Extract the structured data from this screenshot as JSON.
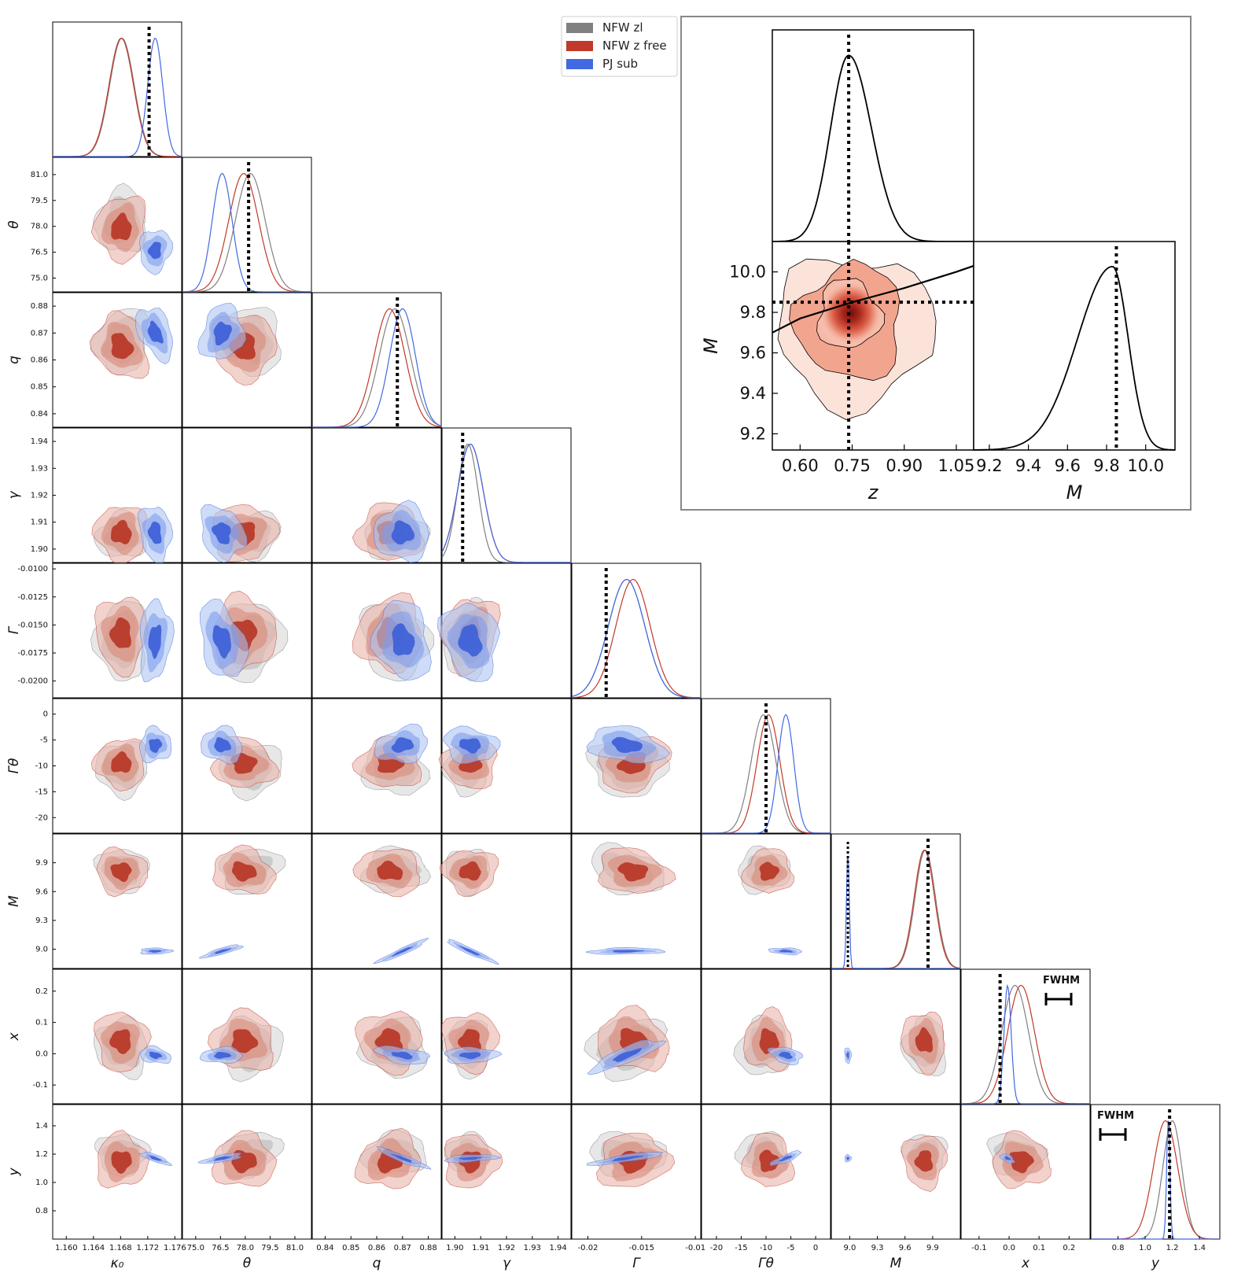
{
  "chart_data": {
    "type": "corner",
    "legend": {
      "placement": "top-center",
      "entries": [
        {
          "name": "NFW zl",
          "color": "#808080"
        },
        {
          "name": "NFW z free",
          "color": "#c0392b"
        },
        {
          "name": "PJ sub",
          "color": "#4169e1"
        }
      ]
    },
    "parameters": [
      {
        "key": "kappa0",
        "label": "κ₀",
        "range": [
          1.158,
          1.177
        ],
        "ticks": [
          "1.160",
          "1.164",
          "1.168",
          "1.172",
          "1.176"
        ],
        "tick_values": [
          1.16,
          1.164,
          1.168,
          1.172,
          1.176
        ],
        "truth": 1.1722,
        "hist": {
          "NFW zl": {
            "mean": 1.1682,
            "sd": 0.0018
          },
          "NFW z free": {
            "mean": 1.1681,
            "sd": 0.0018
          },
          "PJ sub": {
            "mean": 1.1731,
            "sd": 0.0011
          }
        }
      },
      {
        "key": "theta",
        "label": "θ",
        "range": [
          74.2,
          82.0
        ],
        "ticks": [
          "75.0",
          "76.5",
          "78.0",
          "79.5",
          "81.0"
        ],
        "tick_values": [
          75.0,
          76.5,
          78.0,
          79.5,
          81.0
        ],
        "truth": 78.2,
        "hist": {
          "NFW zl": {
            "mean": 78.3,
            "sd": 0.9
          },
          "NFW z free": {
            "mean": 77.9,
            "sd": 0.9
          },
          "PJ sub": {
            "mean": 76.6,
            "sd": 0.6
          }
        }
      },
      {
        "key": "q",
        "label": "q",
        "range": [
          0.835,
          0.885
        ],
        "ticks": [
          "0.84",
          "0.85",
          "0.86",
          "0.87",
          "0.88"
        ],
        "tick_values": [
          0.84,
          0.85,
          0.86,
          0.87,
          0.88
        ],
        "truth": 0.868,
        "hist": {
          "NFW zl": {
            "mean": 0.867,
            "sd": 0.006
          },
          "NFW z free": {
            "mean": 0.865,
            "sd": 0.006
          },
          "PJ sub": {
            "mean": 0.87,
            "sd": 0.005
          }
        }
      },
      {
        "key": "gamma",
        "label": "γ",
        "range": [
          1.895,
          1.945
        ],
        "ticks": [
          "1.90",
          "1.91",
          "1.92",
          "1.93",
          "1.94"
        ],
        "tick_values": [
          1.9,
          1.91,
          1.92,
          1.93,
          1.94
        ],
        "truth": 1.903,
        "hist": {
          "NFW zl": {
            "mean": 1.905,
            "sd": 0.004
          },
          "NFW z free": {
            "mean": 1.906,
            "sd": 0.005
          },
          "PJ sub": {
            "mean": 1.906,
            "sd": 0.005
          }
        }
      },
      {
        "key": "Gamma",
        "label": "Γ",
        "range": [
          -0.0215,
          -0.0095
        ],
        "ticks": [
          "-0.0100",
          "-0.0125",
          "-0.0150",
          "-0.0175",
          "-0.0200"
        ],
        "tick_values": [
          -0.01,
          -0.0125,
          -0.015,
          -0.0175,
          -0.02
        ],
        "bottom_ticks": [
          "-0.02",
          "-0.015",
          "-0.01"
        ],
        "bottom_tick_values": [
          -0.02,
          -0.015,
          -0.01
        ],
        "truth": -0.0183,
        "hist": {
          "NFW zl": {
            "mean": -0.0164,
            "sd": 0.0017
          },
          "NFW z free": {
            "mean": -0.0158,
            "sd": 0.0016
          },
          "PJ sub": {
            "mean": -0.0164,
            "sd": 0.0017
          }
        }
      },
      {
        "key": "Gamma_theta",
        "label": "Γθ",
        "range": [
          -23,
          3
        ],
        "ticks": [
          "0",
          "-5",
          "-10",
          "-15",
          "-20"
        ],
        "tick_values": [
          0,
          -5,
          -10,
          -15,
          -20
        ],
        "bottom_ticks": [
          "-20",
          "-15",
          "-10",
          "-5",
          "0"
        ],
        "bottom_tick_values": [
          -20,
          -15,
          -10,
          -5,
          0
        ],
        "truth": -10,
        "hist": {
          "NFW zl": {
            "mean": -10.5,
            "sd": 2.5
          },
          "NFW z free": {
            "mean": -9.5,
            "sd": 2.3
          },
          "PJ sub": {
            "mean": -6.0,
            "sd": 1.6
          }
        }
      },
      {
        "key": "M",
        "label": "M",
        "range": [
          8.8,
          10.2
        ],
        "ticks": [
          "9.9",
          "9.6",
          "9.3",
          "9.0"
        ],
        "tick_values": [
          9.9,
          9.6,
          9.3,
          9.0
        ],
        "bottom_ticks": [
          "9.0",
          "9.3",
          "9.6",
          "9.9"
        ],
        "bottom_tick_values": [
          9.0,
          9.3,
          9.6,
          9.9
        ],
        "truth": 9.85,
        "truth_pj": 8.98,
        "hist": {
          "NFW zl": {
            "mean": 9.82,
            "sd": 0.11
          },
          "NFW z free": {
            "mean": 9.81,
            "sd": 0.11
          },
          "PJ sub": {
            "mean": 8.98,
            "sd": 0.015
          }
        }
      },
      {
        "key": "x",
        "label": "x",
        "range": [
          -0.16,
          0.27
        ],
        "ticks": [
          "0.2",
          "0.1",
          "0.0",
          "-0.1"
        ],
        "tick_values": [
          0.2,
          0.1,
          0.0,
          -0.1
        ],
        "bottom_ticks": [
          "-0.1",
          "0.0",
          "0.1",
          "0.2"
        ],
        "bottom_tick_values": [
          -0.1,
          0.0,
          0.1,
          0.2
        ],
        "truth": -0.03,
        "fwhm_label": "FWHM",
        "hist": {
          "NFW zl": {
            "mean": 0.02,
            "sd": 0.045
          },
          "NFW z free": {
            "mean": 0.04,
            "sd": 0.045
          },
          "PJ sub": {
            "mean": -0.005,
            "sd": 0.012
          }
        }
      },
      {
        "key": "y",
        "label": "y",
        "range": [
          0.6,
          1.55
        ],
        "ticks": [
          "1.4",
          "1.2",
          "1.0",
          "0.8"
        ],
        "tick_values": [
          1.4,
          1.2,
          1.0,
          0.8
        ],
        "bottom_ticks": [
          "0.8",
          "1.0",
          "1.2",
          "1.4"
        ],
        "bottom_tick_values": [
          0.8,
          1.0,
          1.2,
          1.4
        ],
        "truth": 1.18,
        "fwhm_label": "FWHM",
        "hist": {
          "NFW zl": {
            "mean": 1.2,
            "sd": 0.07
          },
          "NFW z free": {
            "mean": 1.15,
            "sd": 0.09
          },
          "PJ sub": {
            "mean": 1.17,
            "sd": 0.012
          }
        }
      }
    ],
    "inset": {
      "type": "corner",
      "parameters": [
        "z",
        "M"
      ],
      "z": {
        "range": [
          0.52,
          1.1
        ],
        "ticks": [
          "0.60",
          "0.75",
          "0.90",
          "1.05"
        ],
        "tick_values": [
          0.6,
          0.75,
          0.9,
          1.05
        ],
        "truth": 0.74,
        "peak": 0.74,
        "sd": 0.055
      },
      "M": {
        "range": [
          9.12,
          10.15
        ],
        "ticks": [
          "10.0",
          "9.8",
          "9.6",
          "9.4",
          "9.2"
        ],
        "tick_values": [
          10.0,
          9.8,
          9.6,
          9.4,
          9.2
        ],
        "bottom_ticks": [
          "9.2",
          "9.4",
          "9.6",
          "9.8",
          "10.0"
        ],
        "bottom_tick_values": [
          9.2,
          9.4,
          9.6,
          9.8,
          10.0
        ],
        "truth": 9.85,
        "peak": 9.83,
        "sd": 0.12
      },
      "degeneracy_curve": [
        [
          0.52,
          9.7
        ],
        [
          0.6,
          9.77
        ],
        [
          0.75,
          9.85
        ],
        [
          0.9,
          9.92
        ],
        [
          1.05,
          10.0
        ],
        [
          1.1,
          10.03
        ]
      ]
    }
  }
}
